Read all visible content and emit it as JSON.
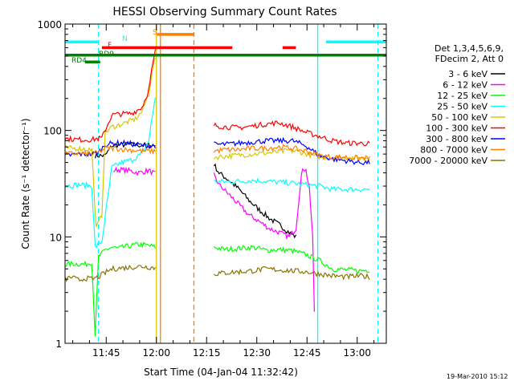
{
  "footer_stamp": "19-Mar-2010 15:12",
  "colors": {
    "black": "#000000",
    "magenta": "#ff00ff",
    "green": "#00ff00",
    "cyan": "#00ffff",
    "yellow": "#d6c800",
    "red": "#ff0000",
    "blue": "#0000ff",
    "orange": "#ff7f00",
    "olive": "#8a7400",
    "darkgreen": "#007f00"
  },
  "chart_data": {
    "type": "line",
    "title": "HESSI Observing Summary Count Rates",
    "xlabel": "Start Time (04-Jan-04 11:32:42)",
    "ylabel": "Count Rate (s⁻¹ detector⁻¹)",
    "yscale": "log",
    "ylim": [
      1,
      1000
    ],
    "xlim_minutes": [
      0,
      96
    ],
    "x_ticks": [
      "11:45",
      "12:00",
      "12:15",
      "12:30",
      "12:45",
      "13:00"
    ],
    "y_ticks": [
      "1",
      "10",
      "100",
      "1000"
    ],
    "grid": false,
    "legend_position": "right",
    "legend_title": [
      "Det 1,3,4,5,6,9,",
      "FDecim 2, Att 0"
    ],
    "series": [
      {
        "name": "3 - 6 keV",
        "color": "#000000",
        "segments": [
          [
            [
              9,
              58
            ],
            [
              12,
              58
            ],
            [
              14,
              72
            ],
            [
              19,
              74
            ],
            [
              21,
              73
            ],
            [
              27,
              72
            ]
          ],
          [
            [
              44.5,
              48
            ],
            [
              46,
              40
            ],
            [
              49,
              34
            ],
            [
              52,
              28
            ],
            [
              55,
              22
            ],
            [
              58,
              18
            ],
            [
              61,
              15
            ],
            [
              64,
              13
            ],
            [
              67,
              11
            ],
            [
              69,
              10
            ]
          ]
        ]
      },
      {
        "name": "6 - 12 keV",
        "color": "#ff00ff",
        "segments": [
          [
            [
              14.5,
              42
            ],
            [
              16,
              43
            ],
            [
              19,
              42
            ],
            [
              22,
              40
            ],
            [
              25,
              42
            ],
            [
              27,
              39
            ]
          ],
          [
            [
              44.5,
              38
            ],
            [
              46,
              31
            ],
            [
              49,
              25
            ],
            [
              52,
              20
            ],
            [
              55,
              16
            ],
            [
              58,
              14
            ],
            [
              61,
              12
            ],
            [
              64,
              11
            ],
            [
              67,
              10
            ],
            [
              69,
              12
            ],
            [
              70,
              25
            ],
            [
              71,
              45
            ],
            [
              72,
              42
            ],
            [
              73,
              28
            ],
            [
              74,
              10
            ],
            [
              74.5,
              2
            ]
          ]
        ]
      },
      {
        "name": "12 - 25 keV",
        "color": "#00ff00",
        "segments": [
          [
            [
              0,
              5.5
            ],
            [
              3,
              5.6
            ],
            [
              6,
              5.5
            ],
            [
              8,
              5.8
            ],
            [
              9,
              1.2
            ],
            [
              10,
              6.5
            ],
            [
              12,
              7.5
            ],
            [
              14,
              8
            ],
            [
              16,
              7.8
            ],
            [
              19,
              8.2
            ],
            [
              22,
              8.5
            ],
            [
              25,
              8.3
            ],
            [
              27,
              8
            ]
          ],
          [
            [
              44.5,
              8
            ],
            [
              48,
              7.6
            ],
            [
              52,
              7.8
            ],
            [
              56,
              8
            ],
            [
              60,
              7.5
            ],
            [
              64,
              7.6
            ],
            [
              68,
              7.4
            ],
            [
              72,
              6.8
            ],
            [
              76,
              6
            ],
            [
              80,
              5
            ],
            [
              84,
              4.9
            ],
            [
              88,
              4.8
            ],
            [
              91,
              4.9
            ]
          ]
        ]
      },
      {
        "name": "25 - 50 keV",
        "color": "#00ffff",
        "segments": [
          [
            [
              0,
              30
            ],
            [
              4,
              31
            ],
            [
              8,
              30
            ],
            [
              9,
              8
            ],
            [
              11,
              9
            ],
            [
              14,
              45
            ],
            [
              17,
              50
            ],
            [
              20,
              53
            ],
            [
              23,
              60
            ],
            [
              25,
              80
            ],
            [
              26,
              130
            ],
            [
              27,
              210
            ]
          ],
          [
            [
              44.5,
              33
            ],
            [
              50,
              33
            ],
            [
              56,
              34
            ],
            [
              62,
              33
            ],
            [
              68,
              32
            ],
            [
              72,
              31
            ],
            [
              76,
              30
            ],
            [
              80,
              28
            ],
            [
              84,
              28
            ],
            [
              88,
              28
            ],
            [
              91,
              28
            ]
          ]
        ]
      },
      {
        "name": "50 - 100 keV",
        "color": "#d6c800",
        "segments": [
          [
            [
              0,
              68
            ],
            [
              4,
              68
            ],
            [
              8,
              66
            ],
            [
              9.3,
              12
            ],
            [
              11,
              16
            ],
            [
              12,
              95
            ],
            [
              14,
              108
            ],
            [
              16,
              112
            ],
            [
              18,
              118
            ],
            [
              21,
              128
            ],
            [
              23,
              150
            ],
            [
              25,
              220
            ],
            [
              26,
              350
            ],
            [
              27,
              480
            ]
          ],
          [
            [
              44.5,
              56
            ],
            [
              50,
              58
            ],
            [
              56,
              60
            ],
            [
              62,
              62
            ],
            [
              67,
              65
            ],
            [
              71,
              62
            ],
            [
              74,
              58
            ],
            [
              78,
              56
            ],
            [
              84,
              56
            ],
            [
              88,
              55
            ],
            [
              91,
              56
            ]
          ]
        ]
      },
      {
        "name": "100 - 300 keV",
        "color": "#ff0000",
        "segments": [
          [
            [
              0,
              84
            ],
            [
              4,
              82
            ],
            [
              8,
              82
            ],
            [
              11,
              85
            ],
            [
              14,
              140
            ],
            [
              17,
              143
            ],
            [
              20,
              145
            ],
            [
              23,
              165
            ],
            [
              25,
              240
            ],
            [
              26,
              380
            ],
            [
              27,
              560
            ]
          ],
          [
            [
              44.5,
              112
            ],
            [
              48,
              108
            ],
            [
              52,
              106
            ],
            [
              56,
              110
            ],
            [
              60,
              115
            ],
            [
              64,
              118
            ],
            [
              68,
              108
            ],
            [
              72,
              96
            ],
            [
              76,
              88
            ],
            [
              80,
              80
            ],
            [
              84,
              76
            ],
            [
              88,
              76
            ],
            [
              91,
              75
            ]
          ]
        ]
      },
      {
        "name": "300 - 800 keV",
        "color": "#0000ff",
        "segments": [
          [
            [
              0,
              58
            ],
            [
              4,
              60
            ],
            [
              8,
              60
            ],
            [
              10,
              62
            ],
            [
              12,
              74
            ],
            [
              15,
              76
            ],
            [
              18,
              76
            ],
            [
              21,
              74
            ],
            [
              24,
              72
            ],
            [
              27,
              72
            ]
          ],
          [
            [
              44.5,
              74
            ],
            [
              48,
              74
            ],
            [
              52,
              76
            ],
            [
              56,
              78
            ],
            [
              60,
              80
            ],
            [
              64,
              80
            ],
            [
              68,
              80
            ],
            [
              72,
              72
            ],
            [
              76,
              58
            ],
            [
              80,
              54
            ],
            [
              84,
              52
            ],
            [
              88,
              50
            ],
            [
              91,
              50
            ]
          ]
        ]
      },
      {
        "name": "800 - 7000 keV",
        "color": "#ff7f00",
        "segments": [
          [
            [
              0,
              60
            ],
            [
              4,
              61
            ],
            [
              8,
              60
            ],
            [
              10,
              62
            ],
            [
              12,
              68
            ],
            [
              15,
              68
            ],
            [
              18,
              66
            ],
            [
              21,
              65
            ],
            [
              24,
              64
            ],
            [
              27,
              64
            ]
          ],
          [
            [
              44.5,
              64
            ],
            [
              48,
              66
            ],
            [
              52,
              66
            ],
            [
              56,
              68
            ],
            [
              60,
              68
            ],
            [
              64,
              70
            ],
            [
              68,
              68
            ],
            [
              72,
              64
            ],
            [
              76,
              58
            ],
            [
              80,
              56
            ],
            [
              84,
              56
            ],
            [
              88,
              55
            ],
            [
              91,
              55
            ]
          ]
        ]
      },
      {
        "name": "7000 - 20000 keV",
        "color": "#8a7400",
        "segments": [
          [
            [
              0,
              4
            ],
            [
              2,
              4.2
            ],
            [
              4,
              3.9
            ],
            [
              6,
              4.1
            ],
            [
              8,
              4
            ],
            [
              10,
              4.2
            ],
            [
              12,
              4.6
            ],
            [
              14,
              5
            ],
            [
              17,
              5.1
            ],
            [
              20,
              5.2
            ],
            [
              23,
              5.3
            ],
            [
              25,
              5.2
            ],
            [
              27,
              5.1
            ]
          ],
          [
            [
              44.5,
              4.5
            ],
            [
              48,
              4.6
            ],
            [
              52,
              4.7
            ],
            [
              56,
              4.8
            ],
            [
              60,
              5
            ],
            [
              64,
              4.9
            ],
            [
              68,
              4.8
            ],
            [
              72,
              4.7
            ],
            [
              76,
              4.5
            ],
            [
              80,
              4.3
            ],
            [
              84,
              4.2
            ],
            [
              88,
              4.3
            ],
            [
              91,
              4.2
            ]
          ]
        ]
      }
    ],
    "state_bars": [
      {
        "label": "N",
        "color": "#00ffff",
        "y": 680,
        "segments": [
          [
            0,
            10
          ],
          [
            78,
            96
          ]
        ]
      },
      {
        "label": "S",
        "color": "#ff7f00",
        "y": 800,
        "segments": [
          [
            27.5,
            38.5
          ]
        ]
      },
      {
        "label": "F",
        "color": "#ff0000",
        "y": 600,
        "segments": [
          [
            11,
            50
          ],
          [
            65,
            69
          ]
        ]
      },
      {
        "label": "RD9",
        "color": "#007f00",
        "y": 510,
        "segments": [
          [
            0,
            96
          ]
        ]
      },
      {
        "label": "RD4",
        "color": "#007f00",
        "y": 440,
        "segments": [
          [
            6,
            10.5
          ]
        ]
      }
    ],
    "vertical_lines": [
      {
        "x": 10,
        "color": "#00ffff",
        "style": "dashed"
      },
      {
        "x": 27.3,
        "color": "#d6c800",
        "style": "solid"
      },
      {
        "x": 28.5,
        "color": "#ff7f00",
        "style": "solid"
      },
      {
        "x": 38.5,
        "color": "#ff7f00",
        "style": "dashed"
      },
      {
        "x": 75.5,
        "color": "#00ffff",
        "style": "solid"
      },
      {
        "x": 93.5,
        "color": "#00ffff",
        "style": "dashed"
      }
    ]
  }
}
